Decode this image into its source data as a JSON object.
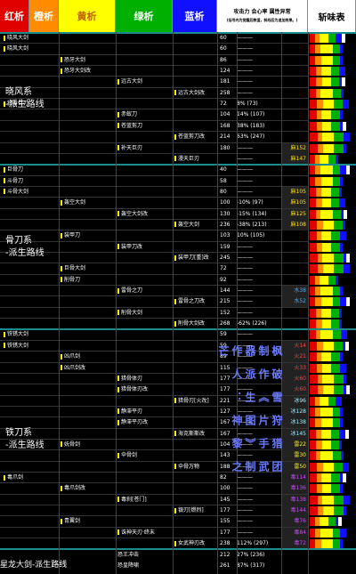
{
  "headers": {
    "red": "红析",
    "orange": "橙析",
    "yellow": "黄析",
    "green": "绿析",
    "blue": "蓝析",
    "stats_line1": "攻击力 会心率 属性异常",
    "stats_line2": "(括号内为觉醒后数值，斜线后为追加效果。)",
    "sharpness": "斩味表",
    "colors": {
      "red": "#e00000",
      "orange": "#ff8c00",
      "yellow": "#ffff00",
      "green": "#00b000",
      "blue": "#1010ff"
    }
  },
  "groups": [
    {
      "label": "晓风系\n-派生路线"
    },
    {
      "label": "骨刀系\n-派生路线"
    },
    {
      "label": "铁刀系\n-派生路线"
    },
    {
      "label": "星龙大剑"
    }
  ],
  "rows": [
    {
      "col": 0,
      "name": "晓风大剑",
      "atk": "60",
      "aff": "———",
      "elem": ""
    },
    {
      "col": 0,
      "name": "晓风大剑",
      "atk": "60",
      "aff": "———",
      "elem": ""
    },
    {
      "col": 1,
      "name": "恐牙大剑",
      "atk": "86",
      "aff": "———",
      "elem": ""
    },
    {
      "col": 1,
      "name": "恐牙大剑改",
      "atk": "124",
      "aff": "———",
      "elem": ""
    },
    {
      "col": 2,
      "name": "远古大剑",
      "atk": "181",
      "aff": "———",
      "elem": ""
    },
    {
      "col": 3,
      "name": "远古大剑改",
      "atk": "258",
      "aff": "———",
      "elem": ""
    },
    {
      "col": 0,
      "name": "猎兽巨刃",
      "atk": "72",
      "aff": "8%  (73)",
      "elem": ""
    },
    {
      "col": 2,
      "name": "赤蚁刀",
      "atk": "104",
      "aff": "14% (107)",
      "elem": ""
    },
    {
      "col": 2,
      "name": "苍蓝剪刀",
      "atk": "168",
      "aff": "38% (183)",
      "elem": ""
    },
    {
      "col": 3,
      "name": "苍蓝剪刀改",
      "atk": "214",
      "aff": "63% (247)",
      "elem": ""
    },
    {
      "col": 2,
      "name": "补天巨刃",
      "atk": "180",
      "aff": "———",
      "elem": "麻152"
    },
    {
      "col": 3,
      "name": "漫天巨刃",
      "atk": "",
      "aff": "———",
      "elem": "麻147"
    },
    {
      "col": 0,
      "name": "巨骨刀",
      "atk": "40",
      "aff": "———",
      "elem": ""
    },
    {
      "col": 0,
      "name": "斗骨刀",
      "atk": "58",
      "aff": "———",
      "elem": ""
    },
    {
      "col": 0,
      "name": "斗骨大剑",
      "atk": "80",
      "aff": "———",
      "elem": "麻105"
    },
    {
      "col": 1,
      "name": "轰空大剑",
      "atk": "100",
      "aff": "-10% (97)",
      "elem": "麻105"
    },
    {
      "col": 2,
      "name": "轰空大剑改",
      "atk": "130",
      "aff": "-15% (134)",
      "elem": "麻125"
    },
    {
      "col": 3,
      "name": "轰空大剑",
      "atk": "236",
      "aff": "-38% (213)",
      "elem": "麻108"
    },
    {
      "col": 1,
      "name": "装甲刀",
      "atk": "103",
      "aff": "10% (105)",
      "elem": ""
    },
    {
      "col": 2,
      "name": "装甲刀改",
      "atk": "159",
      "aff": "———",
      "elem": ""
    },
    {
      "col": 3,
      "name": "装甲刀[重]改",
      "atk": "245",
      "aff": "———",
      "elem": ""
    },
    {
      "col": 1,
      "name": "巨骨大剑",
      "atk": "72",
      "aff": "———",
      "elem": ""
    },
    {
      "col": 1,
      "name": "削骨刀",
      "atk": "92",
      "aff": "———",
      "elem": ""
    },
    {
      "col": 2,
      "name": "雷骨之刀",
      "atk": "144",
      "aff": "———",
      "elem": "水38"
    },
    {
      "col": 3,
      "name": "雷骨之刀改",
      "atk": "215",
      "aff": "———",
      "elem": "水52"
    },
    {
      "col": 2,
      "name": "削骨大剑",
      "atk": "152",
      "aff": "———",
      "elem": ""
    },
    {
      "col": 3,
      "name": "削骨大剑改",
      "atk": "268",
      "aff": "-62% (226)",
      "elem": ""
    },
    {
      "col": 0,
      "name": "铁锈大剑",
      "atk": "59",
      "aff": "———",
      "elem": ""
    },
    {
      "col": 0,
      "name": "铁锈大剑",
      "atk": "59",
      "aff": "———",
      "elem": "火14"
    },
    {
      "col": 1,
      "name": "凶爪剑",
      "atk": "89",
      "aff": "———",
      "elem": "火21"
    },
    {
      "col": 1,
      "name": "凶爪剑改",
      "atk": "115",
      "aff": "———",
      "elem": "火33"
    },
    {
      "col": 2,
      "name": "猎骨体刃",
      "atk": "177",
      "aff": "———",
      "elem": "火60"
    },
    {
      "col": 2,
      "name": "猎骨体刃改",
      "atk": "177",
      "aff": "———",
      "elem": "火60"
    },
    {
      "col": 3,
      "name": "猎骨刃[火改]",
      "atk": "221",
      "aff": "———",
      "elem": "冰96"
    },
    {
      "col": 2,
      "name": "静滞平刃",
      "atk": "127",
      "aff": "———",
      "elem": "冰128"
    },
    {
      "col": 2,
      "name": "静滞平刃改",
      "atk": "167",
      "aff": "———",
      "elem": "冰138"
    },
    {
      "col": 3,
      "name": "海克斯斯改",
      "atk": "167",
      "aff": "———",
      "elem": "冰145"
    },
    {
      "col": 1,
      "name": "妩骨剑",
      "atk": "104",
      "aff": "———",
      "elem": "雷22"
    },
    {
      "col": 2,
      "name": "伞骨剑",
      "atk": "143",
      "aff": "———",
      "elem": "雷30"
    },
    {
      "col": 3,
      "name": "伞骨万物",
      "atk": "188",
      "aff": "———",
      "elem": "雷50"
    },
    {
      "col": 0,
      "name": "毒爪剑",
      "atk": "82",
      "aff": "———",
      "elem": "毒114"
    },
    {
      "col": 1,
      "name": "毒爪剑改",
      "atk": "100",
      "aff": "———",
      "elem": "毒136"
    },
    {
      "col": 2,
      "name": "毒刹[苍门]",
      "atk": "145",
      "aff": "———",
      "elem": "毒138"
    },
    {
      "col": 3,
      "name": "银刃[燃烈]",
      "atk": "177",
      "aff": "———",
      "elem": "毒144"
    },
    {
      "col": 1,
      "name": "青翼剑",
      "atk": "155",
      "aff": "———",
      "elem": "毒76"
    },
    {
      "col": 2,
      "name": "诛神天刃·终末",
      "atk": "177",
      "aff": "———",
      "elem": "毒84"
    },
    {
      "col": 3,
      "name": "女武神刃改",
      "atk": "238",
      "aff": "112% (297)",
      "elem": "毒72"
    },
    {
      "col": 1,
      "name": "恐王冲击",
      "atk": "212",
      "aff": "27% (236)",
      "elem": ""
    },
    {
      "col": 2,
      "name": "恐皇降啸",
      "atk": "261",
      "aff": "87% (317)",
      "elem": ""
    }
  ],
  "watermark": "枫 破 雪 狩 猎 团 制 作 《 片 手 武 器 派 生 图 》 制 作 人 ： 神 黎 之 芒",
  "footer_group": "星龙大剑-派生路线",
  "footer_items": [
    {
      "name": "恐王冲击",
      "atk": "212",
      "aff": "27% (236)"
    },
    {
      "name": "恐皇降啸",
      "atk": "261",
      "aff": "87% (317)"
    }
  ]
}
